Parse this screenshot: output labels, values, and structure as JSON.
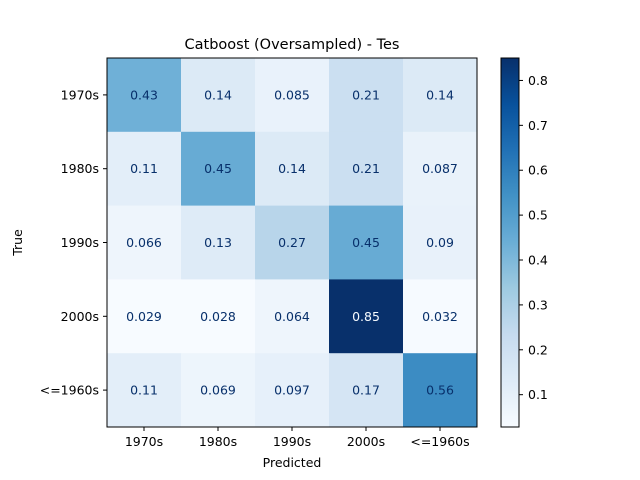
{
  "chart_data": {
    "type": "heatmap",
    "title": "Catboost (Oversampled) - Tes",
    "xlabel": "Predicted",
    "ylabel": "True",
    "x_categories": [
      "1970s",
      "1980s",
      "1990s",
      "2000s",
      "<=1960s"
    ],
    "y_categories": [
      "1970s",
      "1980s",
      "1990s",
      "2000s",
      "<=1960s"
    ],
    "values": [
      [
        0.43,
        0.14,
        0.085,
        0.21,
        0.14
      ],
      [
        0.11,
        0.45,
        0.14,
        0.21,
        0.087
      ],
      [
        0.066,
        0.13,
        0.27,
        0.45,
        0.09
      ],
      [
        0.029,
        0.028,
        0.064,
        0.85,
        0.032
      ],
      [
        0.11,
        0.069,
        0.097,
        0.17,
        0.56
      ]
    ],
    "cell_labels": [
      [
        "0.43",
        "0.14",
        "0.085",
        "0.21",
        "0.14"
      ],
      [
        "0.11",
        "0.45",
        "0.14",
        "0.21",
        "0.087"
      ],
      [
        "0.066",
        "0.13",
        "0.27",
        "0.45",
        "0.09"
      ],
      [
        "0.029",
        "0.028",
        "0.064",
        "0.85",
        "0.032"
      ],
      [
        "0.11",
        "0.069",
        "0.097",
        "0.17",
        "0.56"
      ]
    ],
    "colorbar": {
      "colormap": "Blues",
      "range": [
        0.028,
        0.85
      ],
      "ticks": [
        0.1,
        0.2,
        0.3,
        0.4,
        0.5,
        0.6,
        0.7,
        0.8
      ],
      "tick_labels": [
        "0.1",
        "0.2",
        "0.3",
        "0.4",
        "0.5",
        "0.6",
        "0.7",
        "0.8"
      ]
    },
    "grid": false
  }
}
